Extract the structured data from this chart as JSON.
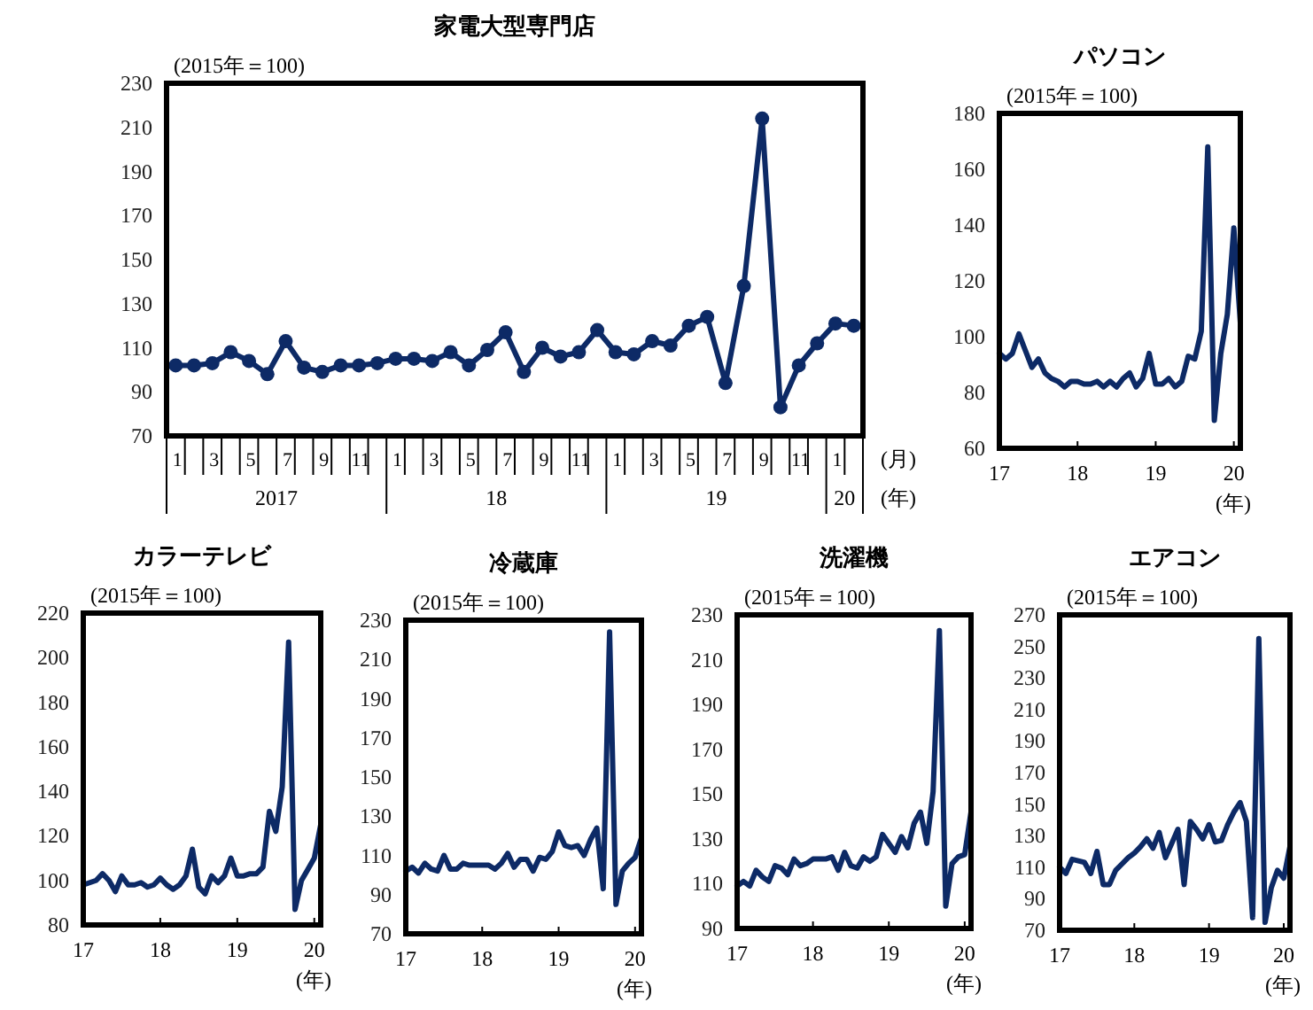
{
  "chart_data": [
    {
      "type": "line",
      "title": "家電大型専門店",
      "ylabel": "(2015年＝100)",
      "xlabel": "(月)",
      "annotations": [
        "2017",
        "18",
        "19",
        "20",
        "(年)"
      ],
      "categories": [
        "1",
        null,
        "3",
        null,
        "5",
        null,
        "7",
        null,
        "9",
        null,
        "11",
        null,
        "1",
        null,
        "3",
        null,
        "5",
        null,
        "7",
        null,
        "9",
        null,
        "11",
        null,
        "1",
        null,
        "3",
        null,
        "5",
        null,
        "7",
        null,
        "9",
        null,
        "11",
        null,
        "1",
        null
      ],
      "values": [
        102,
        102,
        103,
        108,
        104,
        98,
        113,
        101,
        99,
        102,
        102,
        103,
        105,
        105,
        104,
        108,
        102,
        109,
        117,
        99,
        110,
        106,
        108,
        118,
        108,
        107,
        113,
        111,
        120,
        124,
        94,
        138,
        214,
        83,
        102,
        112,
        121,
        120
      ],
      "color": "#0d2a66",
      "marker": "circle",
      "ylim": [
        70,
        230
      ],
      "yticks": [
        70,
        90,
        110,
        130,
        150,
        170,
        190,
        210,
        230
      ]
    },
    {
      "type": "line",
      "title": "パソコン",
      "ylabel": "(2015年＝100)",
      "xlabel": "(年)",
      "color": "#0d2a66",
      "xlim": [
        "2017-01",
        "2020-02"
      ],
      "xticks": [
        {
          "value": "2017-01",
          "label": "17"
        },
        {
          "value": "2018-01",
          "label": "18"
        },
        {
          "value": "2019-01",
          "label": "19"
        },
        {
          "value": "2020-01",
          "label": "20"
        }
      ],
      "ylim": [
        60,
        180
      ],
      "yticks": [
        60,
        80,
        100,
        120,
        140,
        160,
        180
      ],
      "x": [
        "2017-01",
        "2017-02",
        "2017-03",
        "2017-04",
        "2017-05",
        "2017-06",
        "2017-07",
        "2017-08",
        "2017-09",
        "2017-10",
        "2017-11",
        "2017-12",
        "2018-01",
        "2018-02",
        "2018-03",
        "2018-04",
        "2018-05",
        "2018-06",
        "2018-07",
        "2018-08",
        "2018-09",
        "2018-10",
        "2018-11",
        "2018-12",
        "2019-01",
        "2019-02",
        "2019-03",
        "2019-04",
        "2019-05",
        "2019-06",
        "2019-07",
        "2019-08",
        "2019-09",
        "2019-10",
        "2019-11",
        "2019-12",
        "2020-01",
        "2020-02"
      ],
      "values": [
        94,
        92,
        94,
        101,
        95,
        89,
        92,
        87,
        85,
        84,
        82,
        84,
        84,
        83,
        83,
        84,
        82,
        84,
        82,
        85,
        87,
        82,
        85,
        94,
        83,
        83,
        85,
        82,
        84,
        93,
        92,
        102,
        168,
        70,
        94,
        108,
        139,
        105
      ]
    },
    {
      "type": "line",
      "title": "カラーテレビ",
      "ylabel": "(2015年＝100)",
      "xlabel": "(年)",
      "color": "#0d2a66",
      "xlim": [
        "2017-01",
        "2020-02"
      ],
      "xticks": [
        {
          "value": "2017-01",
          "label": "17"
        },
        {
          "value": "2018-01",
          "label": "18"
        },
        {
          "value": "2019-01",
          "label": "19"
        },
        {
          "value": "2020-01",
          "label": "20"
        }
      ],
      "ylim": [
        80,
        220
      ],
      "yticks": [
        80,
        100,
        120,
        140,
        160,
        180,
        200,
        220
      ],
      "x": [
        "2017-01",
        "2017-02",
        "2017-03",
        "2017-04",
        "2017-05",
        "2017-06",
        "2017-07",
        "2017-08",
        "2017-09",
        "2017-10",
        "2017-11",
        "2017-12",
        "2018-01",
        "2018-02",
        "2018-03",
        "2018-04",
        "2018-05",
        "2018-06",
        "2018-07",
        "2018-08",
        "2018-09",
        "2018-10",
        "2018-11",
        "2018-12",
        "2019-01",
        "2019-02",
        "2019-03",
        "2019-04",
        "2019-05",
        "2019-06",
        "2019-07",
        "2019-08",
        "2019-09",
        "2019-10",
        "2019-11",
        "2019-12",
        "2020-01",
        "2020-02"
      ],
      "values": [
        98,
        99,
        100,
        103,
        100,
        95,
        102,
        98,
        98,
        99,
        97,
        98,
        101,
        98,
        96,
        98,
        102,
        114,
        97,
        94,
        102,
        99,
        102,
        110,
        102,
        102,
        103,
        103,
        106,
        131,
        122,
        142,
        207,
        87,
        100,
        105,
        110,
        125
      ]
    },
    {
      "type": "line",
      "title": "冷蔵庫",
      "ylabel": "(2015年＝100)",
      "xlabel": "(年)",
      "color": "#0d2a66",
      "xlim": [
        "2017-01",
        "2020-02"
      ],
      "xticks": [
        {
          "value": "2017-01",
          "label": "17"
        },
        {
          "value": "2018-01",
          "label": "18"
        },
        {
          "value": "2019-01",
          "label": "19"
        },
        {
          "value": "2020-01",
          "label": "20"
        }
      ],
      "ylim": [
        70,
        230
      ],
      "yticks": [
        70,
        90,
        110,
        130,
        150,
        170,
        190,
        210,
        230
      ],
      "x": [
        "2017-01",
        "2017-02",
        "2017-03",
        "2017-04",
        "2017-05",
        "2017-06",
        "2017-07",
        "2017-08",
        "2017-09",
        "2017-10",
        "2017-11",
        "2017-12",
        "2018-01",
        "2018-02",
        "2018-03",
        "2018-04",
        "2018-05",
        "2018-06",
        "2018-07",
        "2018-08",
        "2018-09",
        "2018-10",
        "2018-11",
        "2018-12",
        "2019-01",
        "2019-02",
        "2019-03",
        "2019-04",
        "2019-05",
        "2019-06",
        "2019-07",
        "2019-08",
        "2019-09",
        "2019-10",
        "2019-11",
        "2019-12",
        "2020-01",
        "2020-02"
      ],
      "values": [
        102,
        104,
        101,
        106,
        103,
        102,
        110,
        103,
        103,
        106,
        105,
        105,
        105,
        105,
        103,
        106,
        111,
        104,
        108,
        108,
        102,
        109,
        108,
        112,
        122,
        115,
        114,
        115,
        110,
        118,
        124,
        93,
        224,
        85,
        102,
        106,
        109,
        119
      ]
    },
    {
      "type": "line",
      "title": "洗濯機",
      "ylabel": "(2015年＝100)",
      "xlabel": "(年)",
      "color": "#0d2a66",
      "xlim": [
        "2017-01",
        "2020-02"
      ],
      "xticks": [
        {
          "value": "2017-01",
          "label": "17"
        },
        {
          "value": "2018-01",
          "label": "18"
        },
        {
          "value": "2019-01",
          "label": "19"
        },
        {
          "value": "2020-01",
          "label": "20"
        }
      ],
      "ylim": [
        90,
        230
      ],
      "yticks": [
        90,
        110,
        130,
        150,
        170,
        190,
        210,
        230
      ],
      "x": [
        "2017-01",
        "2017-02",
        "2017-03",
        "2017-04",
        "2017-05",
        "2017-06",
        "2017-07",
        "2017-08",
        "2017-09",
        "2017-10",
        "2017-11",
        "2017-12",
        "2018-01",
        "2018-02",
        "2018-03",
        "2018-04",
        "2018-05",
        "2018-06",
        "2018-07",
        "2018-08",
        "2018-09",
        "2018-10",
        "2018-11",
        "2018-12",
        "2019-01",
        "2019-02",
        "2019-03",
        "2019-04",
        "2019-05",
        "2019-06",
        "2019-07",
        "2019-08",
        "2019-09",
        "2019-10",
        "2019-11",
        "2019-12",
        "2020-01",
        "2020-02"
      ],
      "values": [
        109,
        111,
        109,
        116,
        113,
        111,
        118,
        117,
        114,
        121,
        118,
        119,
        121,
        121,
        121,
        122,
        116,
        124,
        118,
        117,
        122,
        120,
        122,
        132,
        128,
        124,
        131,
        126,
        137,
        142,
        128,
        151,
        223,
        100,
        119,
        122,
        123,
        142
      ]
    },
    {
      "type": "line",
      "title": "エアコン",
      "ylabel": "(2015年＝100)",
      "xlabel": "(年)",
      "color": "#0d2a66",
      "xlim": [
        "2017-01",
        "2020-02"
      ],
      "xticks": [
        {
          "value": "2017-01",
          "label": "17"
        },
        {
          "value": "2018-01",
          "label": "18"
        },
        {
          "value": "2019-01",
          "label": "19"
        },
        {
          "value": "2020-01",
          "label": "20"
        }
      ],
      "ylim": [
        70,
        270
      ],
      "yticks": [
        70,
        90,
        110,
        130,
        150,
        170,
        190,
        210,
        230,
        250,
        270
      ],
      "x": [
        "2017-01",
        "2017-02",
        "2017-03",
        "2017-04",
        "2017-05",
        "2017-06",
        "2017-07",
        "2017-08",
        "2017-09",
        "2017-10",
        "2017-11",
        "2017-12",
        "2018-01",
        "2018-02",
        "2018-03",
        "2018-04",
        "2018-05",
        "2018-06",
        "2018-07",
        "2018-08",
        "2018-09",
        "2018-10",
        "2018-11",
        "2018-12",
        "2019-01",
        "2019-02",
        "2019-03",
        "2019-04",
        "2019-05",
        "2019-06",
        "2019-07",
        "2019-08",
        "2019-09",
        "2019-10",
        "2019-11",
        "2019-12",
        "2020-01",
        "2020-02"
      ],
      "values": [
        110,
        106,
        115,
        114,
        113,
        106,
        120,
        99,
        99,
        108,
        112,
        116,
        119,
        123,
        128,
        122,
        132,
        116,
        125,
        134,
        99,
        139,
        134,
        128,
        137,
        126,
        127,
        137,
        145,
        151,
        139,
        78,
        255,
        75,
        97,
        108,
        103,
        123
      ]
    }
  ]
}
